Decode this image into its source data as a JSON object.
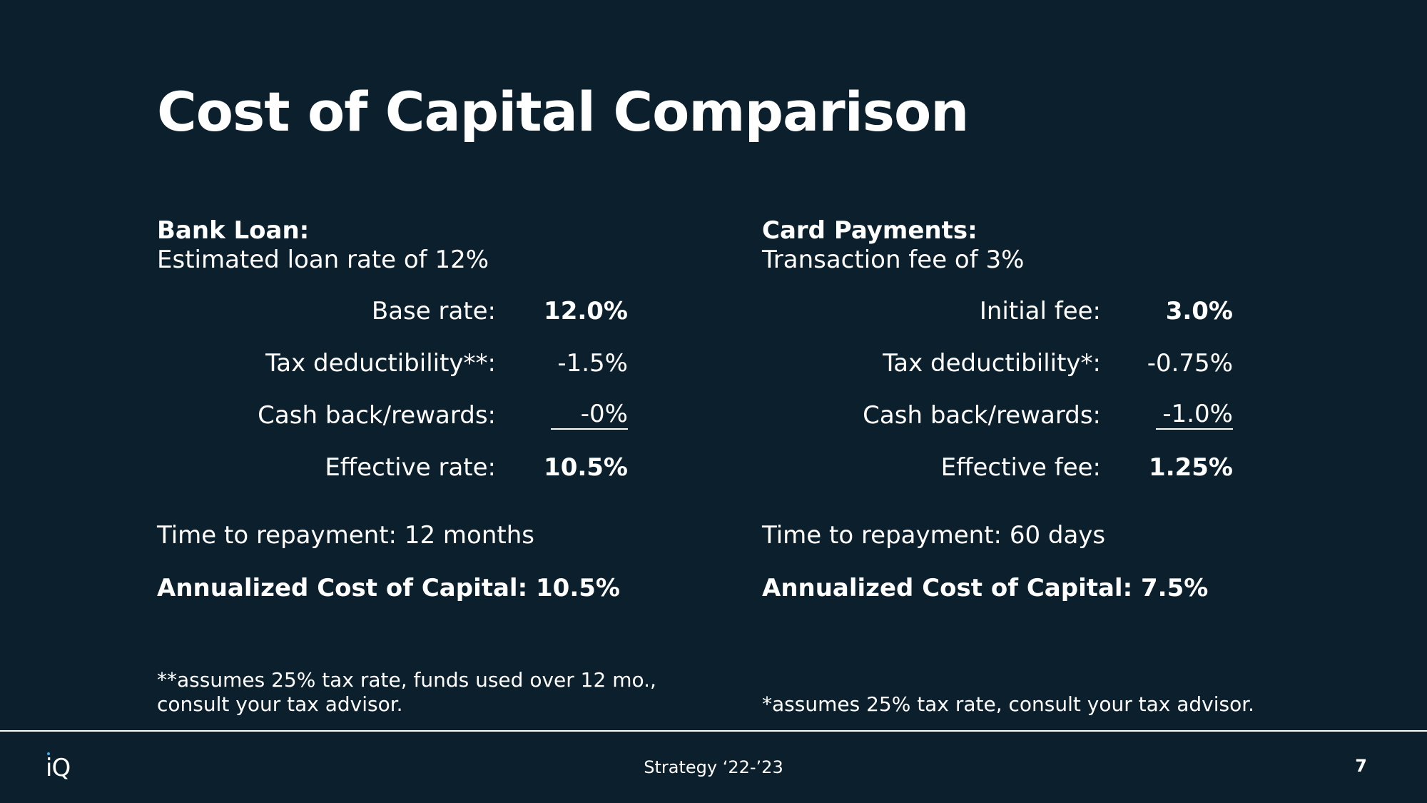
{
  "slide": {
    "title": "Cost of Capital Comparison"
  },
  "bank_loan": {
    "heading": "Bank Loan:",
    "subheading": "Estimated loan rate of 12%",
    "rows": [
      {
        "label": "Base rate:",
        "value": "12.0%"
      },
      {
        "label": "Tax deductibility**:",
        "value": "-1.5%"
      },
      {
        "label": "Cash back/rewards:",
        "value": "-0%"
      },
      {
        "label": "Effective rate:",
        "value": "10.5%"
      }
    ],
    "repayment": "Time to repayment: 12 months",
    "annualized": "Annualized Cost of Capital:  10.5%",
    "footnote_line1": "**assumes 25% tax rate, funds used over 12 mo.,",
    "footnote_line2": "consult your tax advisor."
  },
  "card_payments": {
    "heading": "Card Payments:",
    "subheading": "Transaction fee of 3%",
    "rows": [
      {
        "label": "Initial fee:",
        "value": "3.0%"
      },
      {
        "label": "Tax deductibility*:",
        "value": "-0.75%"
      },
      {
        "label": "Cash back/rewards:",
        "value": "-1.0%"
      },
      {
        "label": "Effective fee:",
        "value": "1.25%"
      }
    ],
    "repayment": "Time to repayment: 60 days",
    "annualized": "Annualized Cost of Capital:  7.5%",
    "footnote": "*assumes 25% tax rate, consult your tax advisor."
  },
  "footer": {
    "logo_text": "iQ",
    "center_text": "Strategy ‘22-’23",
    "page_number": "7"
  },
  "colors": {
    "background": "#0b1f2c",
    "text": "#ffffff",
    "logo_accent": "#3fa9f5"
  }
}
